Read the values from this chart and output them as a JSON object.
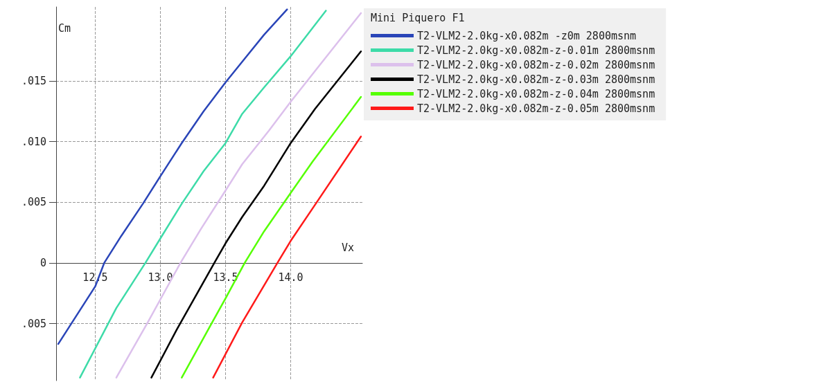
{
  "chart_data": {
    "type": "line",
    "xlabel": "Vx",
    "ylabel": "Cm",
    "legend_title": "Mini Piquero F1",
    "legend": "top right",
    "grid": true,
    "marker": "none",
    "line_style": "solid",
    "xlim": [
      12.2,
      14.55
    ],
    "xticks": [
      {
        "value": 12.5,
        "label": "12.5"
      },
      {
        "value": 13,
        "label": "13.0"
      },
      {
        "value": 13.5,
        "label": "13.5"
      },
      {
        "value": 14,
        "label": "14.0"
      }
    ],
    "ylim": [
      -0.0097,
      0.0211
    ],
    "yticks": [
      {
        "value": -0.005,
        "label": ".005"
      },
      {
        "value": 0,
        "label": "0"
      },
      {
        "value": 0.005,
        "label": ".005"
      },
      {
        "value": 0.01,
        "label": ".010"
      },
      {
        "value": 0.015,
        "label": ".015"
      }
    ],
    "series": [
      {
        "name": "T2-VLM2-2.0kg-x0.082m -z0m 2800msnm",
        "color": "#2a45b8",
        "x": [
          12.216,
          12.5,
          12.569,
          12.699,
          12.866,
          13.0,
          13.164,
          13.331,
          13.5,
          13.647,
          13.796,
          13.972
        ],
        "values": [
          -0.00668,
          -0.00194,
          0,
          0.00221,
          0.00488,
          0.00715,
          0.00988,
          0.01249,
          0.01488,
          0.01684,
          0.01881,
          0.02089
        ]
      },
      {
        "name": "T2-VLM2-2.0kg-x0.082m-z-0.01m 2800msnm",
        "color": "#3ddba8",
        "x": [
          12.383,
          12.662,
          12.885,
          13.0,
          13.164,
          13.331,
          13.5,
          13.628,
          13.796,
          14.0,
          14.27
        ],
        "values": [
          -0.00945,
          -0.00372,
          0,
          0.00202,
          0.00488,
          0.00755,
          0.00988,
          0.01229,
          0.01447,
          0.01704,
          0.02079
        ]
      },
      {
        "name": "T2-VLM2-2.0kg-x0.082m-z-0.02m 2800msnm",
        "color": "#dcc0ec",
        "x": [
          12.662,
          12.903,
          13.154,
          13.312,
          13.5,
          13.628,
          13.833,
          14.0,
          14.204,
          14.539
        ],
        "values": [
          -0.00945,
          -0.0049,
          0,
          0.00281,
          0.00597,
          0.00814,
          0.01091,
          0.01328,
          0.01605,
          0.02059
        ]
      },
      {
        "name": "T2-VLM2-2.0kg-x0.082m-z-0.03m 2800msnm",
        "color": "#000000",
        "x": [
          12.931,
          13.126,
          13.414,
          13.5,
          13.628,
          13.796,
          14.0,
          14.186,
          14.539
        ],
        "values": [
          -0.00945,
          -0.00549,
          0,
          0.00162,
          0.00379,
          0.00636,
          0.00988,
          0.01269,
          0.01743
        ]
      },
      {
        "name": "T2-VLM2-2.0kg-x0.082m-z-0.04m 2800msnm",
        "color": "#55ff00",
        "x": [
          13.164,
          13.387,
          13.5,
          13.647,
          13.796,
          14.0,
          14.167,
          14.539
        ],
        "values": [
          -0.00945,
          -0.0051,
          -0.00292,
          0,
          0.00261,
          0.00577,
          0.00834,
          0.01368
        ]
      },
      {
        "name": "T2-VLM2-2.0kg-x0.082m-z-0.05m 2800msnm",
        "color": "#ff1a1a",
        "x": [
          13.405,
          13.628,
          13.898,
          14.0,
          14.186,
          14.539
        ],
        "values": [
          -0.00945,
          -0.0049,
          0,
          0.00182,
          0.00478,
          0.01042
        ]
      }
    ]
  }
}
